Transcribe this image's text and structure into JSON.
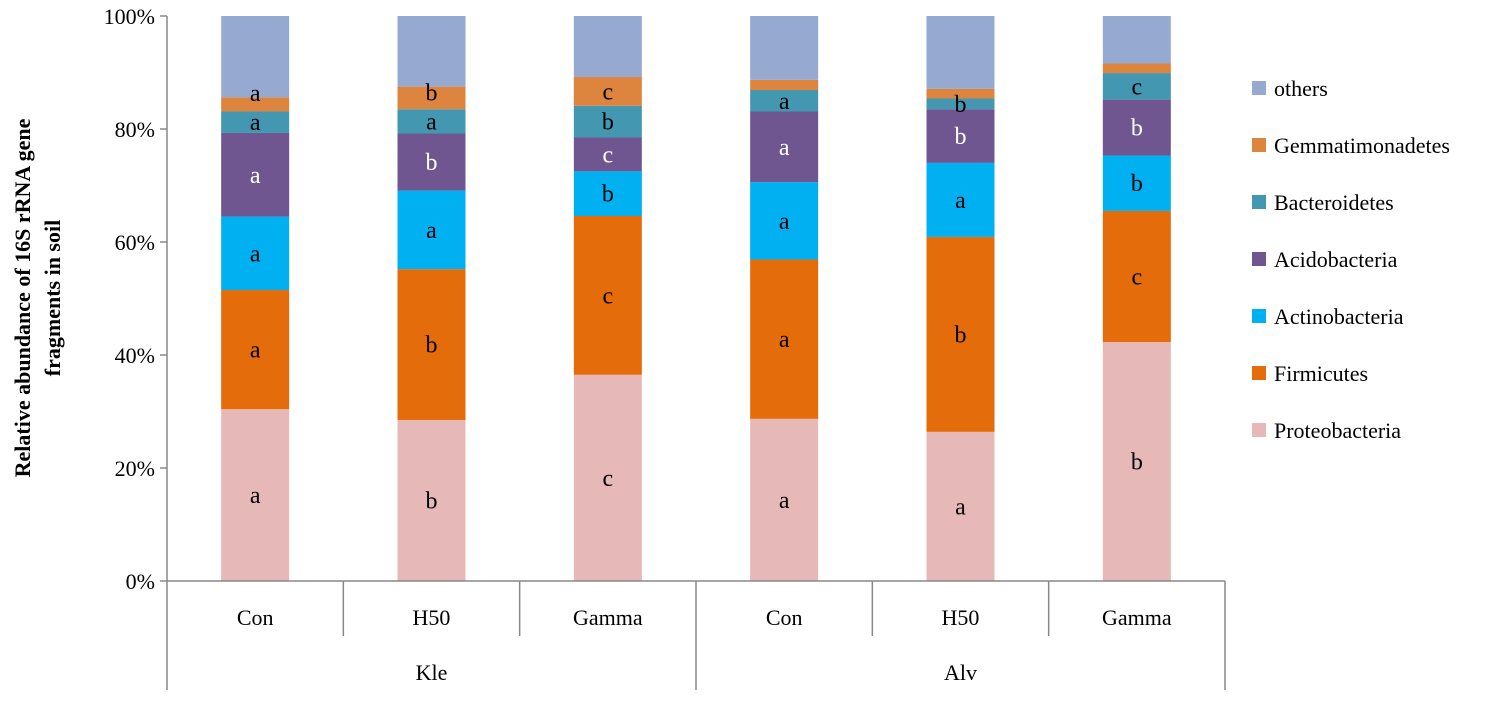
{
  "chart_data": {
    "type": "bar",
    "stacked": true,
    "ylabel": "Relative abundance of 16S rRNA gene fragments in soil",
    "ylim": [
      0,
      100
    ],
    "yticks": [
      "0%",
      "20%",
      "40%",
      "60%",
      "80%",
      "100%"
    ],
    "categories": [
      "Con",
      "H50",
      "Gamma",
      "Con",
      "H50",
      "Gamma"
    ],
    "groups": [
      {
        "label": "Kle",
        "categories": [
          0,
          1,
          2
        ]
      },
      {
        "label": "Alv",
        "categories": [
          3,
          4,
          5
        ]
      }
    ],
    "legend_position": "right",
    "grid": false,
    "series": [
      {
        "name": "Proteobacteria",
        "color": "#E6B9B8",
        "values": [
          30.4,
          28.5,
          36.5,
          28.7,
          26.4,
          42.3
        ],
        "labels": [
          "a",
          "b",
          "c",
          "a",
          "a",
          "b"
        ],
        "label_color": "#000000"
      },
      {
        "name": "Firmicutes",
        "color": "#E46C0A",
        "values": [
          21.1,
          26.7,
          28.1,
          28.2,
          34.5,
          23.2
        ],
        "labels": [
          "a",
          "b",
          "c",
          "a",
          "b",
          "c"
        ],
        "label_color": "#000000"
      },
      {
        "name": "Actinobacteria",
        "color": "#00B0F0",
        "values": [
          13.0,
          13.9,
          7.9,
          13.7,
          13.1,
          9.8
        ],
        "labels": [
          "a",
          "a",
          "b",
          "a",
          "a",
          "b"
        ],
        "label_color": "#000000"
      },
      {
        "name": "Acidobacteria",
        "color": "#705691",
        "values": [
          14.8,
          10.1,
          6.0,
          12.5,
          9.5,
          9.9
        ],
        "labels": [
          "a",
          "b",
          "c",
          "a",
          "b",
          "b"
        ],
        "label_color": "#FFFFFF"
      },
      {
        "name": "Bacteroidetes",
        "color": "#4397B0",
        "values": [
          3.8,
          4.3,
          5.6,
          3.8,
          1.9,
          4.7
        ],
        "labels": [
          "a",
          "a",
          "b",
          "a",
          "b",
          "c"
        ],
        "label_color": "#000000"
      },
      {
        "name": "Gemmatimonadetes",
        "color": "#DD843E",
        "values": [
          2.5,
          4.0,
          5.1,
          1.8,
          1.7,
          1.7
        ],
        "labels": [
          "a",
          "b",
          "c",
          null,
          null,
          null
        ],
        "label_color": "#000000"
      },
      {
        "name": "others",
        "color": "#95A9D1",
        "values": [
          14.4,
          12.5,
          10.8,
          11.3,
          12.9,
          8.4
        ],
        "labels": [
          null,
          null,
          null,
          null,
          null,
          null
        ],
        "label_color": "#000000"
      }
    ]
  }
}
